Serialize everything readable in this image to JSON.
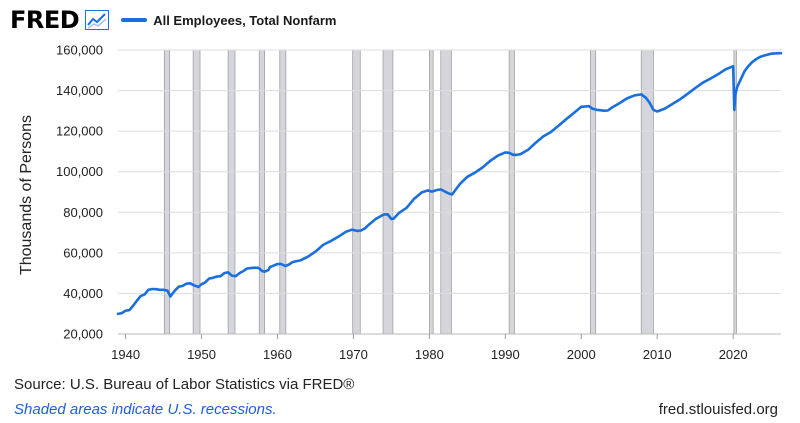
{
  "header": {
    "logo_text": "FRED",
    "logo_icon": "line-graph-icon",
    "legend_label": "All Employees, Total Nonfarm"
  },
  "colors": {
    "series": "#1a6fdf",
    "recession_fill": "#d4d6db",
    "recession_stroke": "#9ea1a7",
    "grid": "#dcdcdc",
    "note": "#1f5fd6"
  },
  "footer": {
    "source_label": "Source: U.S. Bureau of Labor Statistics via FRED®",
    "recession_note": "Shaded areas indicate U.S. recessions.",
    "site": "fred.stlouisfed.org"
  },
  "chart_data": {
    "type": "line",
    "title": "",
    "ylabel": "Thousands of Persons",
    "xlabel": "",
    "xlim": [
      1939,
      2026.3
    ],
    "ylim": [
      20000,
      160000
    ],
    "x_ticks": [
      1940,
      1950,
      1960,
      1970,
      1980,
      1990,
      2000,
      2010,
      2020
    ],
    "y_ticks": [
      20000,
      40000,
      60000,
      80000,
      100000,
      120000,
      140000,
      160000
    ],
    "y_tick_labels": [
      "20,000",
      "40,000",
      "60,000",
      "80,000",
      "100,000",
      "120,000",
      "140,000",
      "160,000"
    ],
    "grid": true,
    "legend": "top-left",
    "recessions": [
      [
        1945.1,
        1945.8
      ],
      [
        1948.9,
        1949.8
      ],
      [
        1953.5,
        1954.4
      ],
      [
        1957.6,
        1958.3
      ],
      [
        1960.3,
        1961.1
      ],
      [
        1969.9,
        1970.9
      ],
      [
        1973.9,
        1975.2
      ],
      [
        1980.0,
        1980.5
      ],
      [
        1981.5,
        1982.9
      ],
      [
        1990.5,
        1991.2
      ],
      [
        2001.2,
        2001.9
      ],
      [
        2007.9,
        2009.5
      ],
      [
        2020.1,
        2020.3
      ]
    ],
    "series": [
      {
        "name": "All Employees, Total Nonfarm",
        "x": [
          1939.0,
          1939.5,
          1940.0,
          1940.5,
          1941.0,
          1941.5,
          1942.0,
          1942.5,
          1943.0,
          1943.5,
          1944.0,
          1944.5,
          1945.0,
          1945.5,
          1945.9,
          1946.2,
          1946.5,
          1947.0,
          1947.5,
          1948.0,
          1948.5,
          1949.0,
          1949.6,
          1950.0,
          1950.5,
          1951.0,
          1951.5,
          1952.0,
          1952.5,
          1953.0,
          1953.5,
          1954.0,
          1954.5,
          1955.0,
          1955.5,
          1956.0,
          1956.5,
          1957.0,
          1957.5,
          1958.0,
          1958.3,
          1958.8,
          1959.0,
          1959.5,
          1960.0,
          1960.5,
          1961.0,
          1961.5,
          1962.0,
          1963.0,
          1964.0,
          1965.0,
          1966.0,
          1967.0,
          1968.0,
          1969.0,
          1969.8,
          1970.5,
          1971.0,
          1971.5,
          1972.0,
          1973.0,
          1974.0,
          1974.5,
          1975.0,
          1975.3,
          1976.0,
          1977.0,
          1978.0,
          1979.0,
          1979.8,
          1980.3,
          1981.0,
          1981.5,
          1982.5,
          1983.0,
          1984.0,
          1985.0,
          1986.0,
          1987.0,
          1988.0,
          1989.0,
          1990.0,
          1990.5,
          1991.0,
          1991.5,
          1992.0,
          1993.0,
          1994.0,
          1995.0,
          1996.0,
          1997.0,
          1998.0,
          1999.0,
          2000.0,
          2001.0,
          2001.5,
          2002.0,
          2003.0,
          2003.5,
          2004.0,
          2005.0,
          2006.0,
          2007.0,
          2007.9,
          2008.5,
          2009.0,
          2009.5,
          2010.0,
          2011.0,
          2012.0,
          2013.0,
          2014.0,
          2015.0,
          2016.0,
          2017.0,
          2018.0,
          2019.0,
          2020.0,
          2020.15,
          2020.3,
          2020.5,
          2021.0,
          2021.5,
          2022.0,
          2022.5,
          2023.0,
          2023.5,
          2024.0,
          2024.5,
          2025.0,
          2025.5,
          2026.0,
          2026.3
        ],
        "y": [
          29900,
          30300,
          31500,
          31800,
          34000,
          36500,
          38800,
          39500,
          41800,
          42200,
          42100,
          41800,
          41800,
          41400,
          38500,
          40000,
          41500,
          43300,
          43700,
          44800,
          45000,
          44000,
          43200,
          44500,
          45500,
          47300,
          47700,
          48300,
          48500,
          50000,
          50400,
          48800,
          48500,
          50000,
          51000,
          52300,
          52500,
          52700,
          52600,
          51000,
          50700,
          51500,
          53000,
          53700,
          54500,
          54500,
          53500,
          54200,
          55500,
          56300,
          58100,
          60600,
          63900,
          65800,
          67900,
          70400,
          71400,
          70800,
          71000,
          72000,
          73800,
          76900,
          78900,
          79000,
          76700,
          76900,
          79700,
          82200,
          86700,
          89800,
          90800,
          90200,
          91000,
          91300,
          89300,
          88800,
          93900,
          97500,
          99500,
          102100,
          105300,
          107900,
          109500,
          109300,
          108400,
          108300,
          108700,
          110800,
          114300,
          117400,
          119600,
          122700,
          125900,
          128900,
          132000,
          132300,
          131000,
          130500,
          130100,
          130200,
          131500,
          133700,
          136100,
          137600,
          138100,
          136500,
          134000,
          130500,
          129700,
          131100,
          133400,
          135700,
          138400,
          141200,
          143900,
          145900,
          148000,
          150500,
          152000,
          130400,
          138000,
          141500,
          145500,
          149500,
          152000,
          154000,
          155400,
          156500,
          157200,
          157700,
          158200,
          158300,
          158400,
          158400
        ]
      }
    ]
  }
}
